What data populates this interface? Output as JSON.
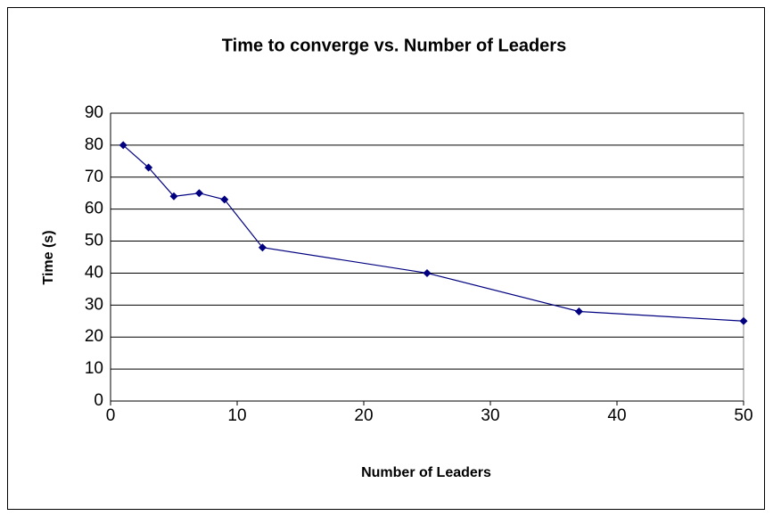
{
  "chart_data": {
    "type": "line",
    "title": "Time to converge vs. Number of Leaders",
    "x_label": "Number of Leaders",
    "y_label": "Time (s)",
    "x": [
      1,
      3,
      5,
      7,
      9,
      12,
      25,
      37,
      50
    ],
    "series": [
      {
        "color": "#000080",
        "values": [
          80,
          73,
          64,
          65,
          63,
          48,
          40,
          28,
          25
        ]
      }
    ],
    "xlim": [
      0,
      50
    ],
    "xticks": [
      0,
      10,
      20,
      30,
      40,
      50
    ],
    "ylim": [
      0,
      90
    ],
    "yticks": [
      0,
      10,
      20,
      30,
      40,
      50,
      60,
      70,
      80,
      90
    ],
    "grid": true
  }
}
